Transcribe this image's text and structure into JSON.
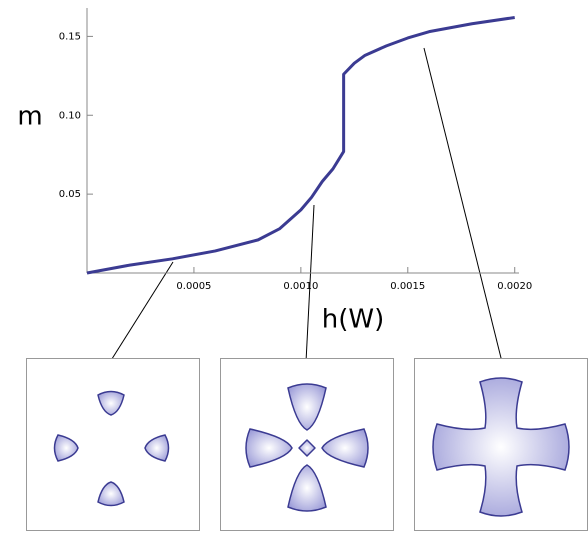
{
  "chart_data": {
    "type": "line",
    "x_label": "h(W)",
    "y_label": "m",
    "x": [
      0,
      0.0002,
      0.0004,
      0.0006,
      0.0008,
      0.0009,
      0.001,
      0.00105,
      0.0011,
      0.00115,
      0.0012,
      0.0012,
      0.00125,
      0.0013,
      0.0014,
      0.0015,
      0.0016,
      0.0018,
      0.002
    ],
    "series": [
      {
        "color": "#3b3b92",
        "values": [
          0,
          0.005,
          0.009,
          0.014,
          0.021,
          0.028,
          0.04,
          0.048,
          0.058,
          0.066,
          0.077,
          0.126,
          0.133,
          0.138,
          0.144,
          0.149,
          0.153,
          0.158,
          0.162
        ]
      }
    ],
    "xlim": [
      0,
      0.00202
    ],
    "ylim": [
      0,
      0.168
    ],
    "xticks": [
      0.0005,
      {
        "value": 0.001,
        "label": "0.0010"
      },
      0.0015,
      {
        "value": 0.002,
        "label": "0.0020"
      }
    ],
    "yticks": [
      0.05,
      {
        "value": 0.1,
        "label": "0.10"
      },
      0.15
    ]
  }
}
